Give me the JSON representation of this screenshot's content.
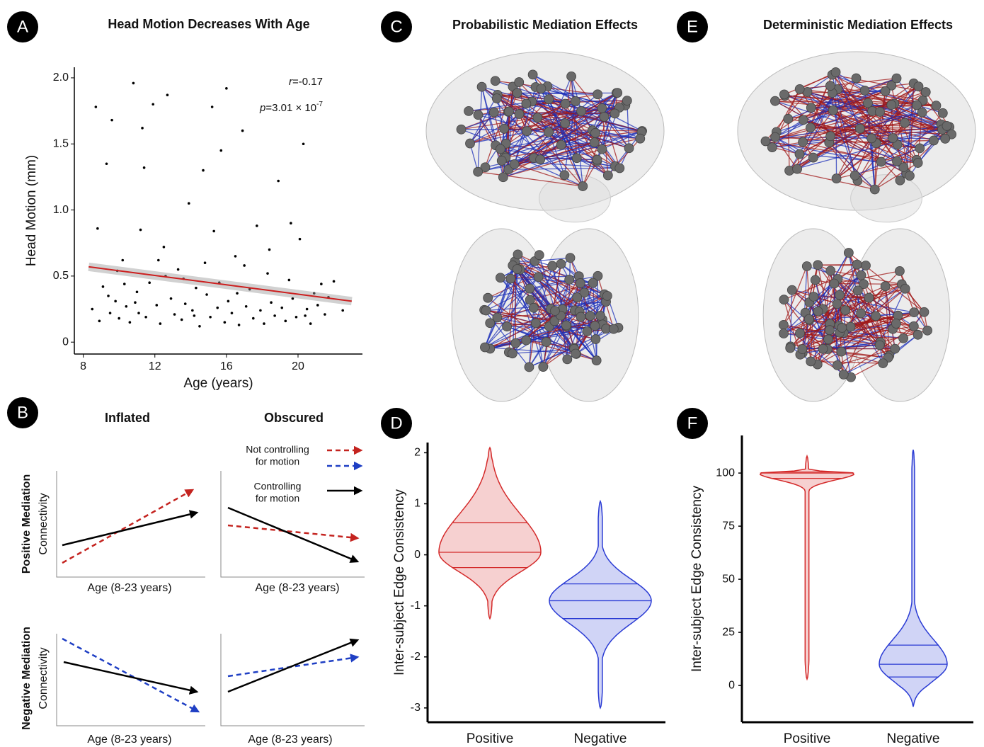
{
  "figure": {
    "labels": [
      "A",
      "B",
      "C",
      "D",
      "E",
      "F"
    ],
    "panel_b": {
      "columns": [
        "Inflated",
        "Obscured"
      ],
      "rows": [
        {
          "title": "Positive Mediation",
          "axis": "Connectivity"
        },
        {
          "title": "Negative Mediation",
          "axis": "Connectivity"
        }
      ],
      "x_label": "Age (8-23 years)",
      "legend": [
        {
          "label": [
            "Not controlling",
            "for motion"
          ]
        },
        {
          "label": [
            "Controlling",
            "for motion"
          ]
        }
      ]
    },
    "brain_titles": [
      "Probabilistic Mediation Effects",
      "Deterministic Mediation Effects"
    ]
  },
  "chart_data": [
    {
      "type": "scatter",
      "title": "Head Motion Decreases With Age",
      "x_label": "Age (years)",
      "y_label": "Head Motion (mm)",
      "x": [
        8.5,
        8.7,
        8.9,
        9.1,
        9.3,
        9.5,
        9.6,
        9.8,
        10.0,
        10.2,
        10.4,
        10.6,
        10.8,
        11.0,
        11.1,
        11.3,
        11.5,
        11.7,
        11.9,
        12.1,
        12.3,
        12.5,
        12.7,
        12.9,
        13.1,
        13.3,
        13.5,
        13.7,
        13.9,
        14.1,
        14.3,
        14.5,
        14.7,
        14.9,
        15.1,
        15.3,
        15.5,
        15.7,
        15.9,
        16.1,
        16.3,
        16.5,
        16.7,
        16.9,
        17.1,
        17.3,
        17.5,
        17.7,
        17.9,
        18.1,
        18.3,
        18.5,
        18.7,
        18.9,
        19.1,
        19.3,
        19.5,
        19.7,
        19.9,
        20.1,
        20.3,
        20.5,
        20.7,
        20.9,
        21.1,
        21.3,
        21.5,
        21.7,
        22.0,
        22.5,
        8.8,
        9.9,
        10.9,
        11.2,
        12.6,
        14.8,
        15.6,
        16.0,
        17.0,
        11.4,
        9.4,
        13.6,
        15.2,
        18.4,
        19.6,
        20.4,
        10.3,
        12.2,
        16.6,
        14.2
      ],
      "series": [
        {
          "color": "#000000",
          "values": [
            0.25,
            1.78,
            0.16,
            0.42,
            1.35,
            0.22,
            1.68,
            0.31,
            0.18,
            0.62,
            0.27,
            0.15,
            1.96,
            0.38,
            0.22,
            1.62,
            0.19,
            0.45,
            1.8,
            0.28,
            0.14,
            0.72,
            1.87,
            0.33,
            0.21,
            0.55,
            0.17,
            0.29,
            1.05,
            0.24,
            0.41,
            0.12,
            1.3,
            0.36,
            0.19,
            0.84,
            0.26,
            1.45,
            0.15,
            0.31,
            0.22,
            0.65,
            0.13,
            1.6,
            0.27,
            0.4,
            0.18,
            0.88,
            0.24,
            0.14,
            0.52,
            0.3,
            0.2,
            1.22,
            0.26,
            0.16,
            0.47,
            0.33,
            0.19,
            0.78,
            1.5,
            0.25,
            0.14,
            0.37,
            0.28,
            0.44,
            0.21,
            0.34,
            0.46,
            0.24,
            0.86,
            0.54,
            0.3,
            0.85,
            0.5,
            0.6,
            0.45,
            1.92,
            0.58,
            1.32,
            0.35,
            0.48,
            1.78,
            0.7,
            0.9,
            0.2,
            0.44,
            0.62,
            0.37,
            0.2
          ]
        }
      ],
      "trendline": {
        "x": [
          8.3,
          23
        ],
        "values": [
          0.57,
          0.31
        ],
        "color": "#cc1f1f"
      },
      "annotations": [
        {
          "parts": [
            "r",
            "=-0.17"
          ]
        },
        {
          "parts": [
            "p",
            "=3.01 × 10",
            "-7"
          ]
        }
      ],
      "xlim": [
        7.5,
        23.6
      ],
      "ylim": [
        -0.09,
        2.08
      ],
      "xticks": [
        8,
        12,
        16,
        20
      ],
      "yticks": [
        0,
        0.5,
        {
          "value": 1,
          "label": "1.0"
        },
        1.5,
        {
          "value": 2,
          "label": "2.0"
        }
      ]
    },
    {
      "type": "violin",
      "y_label": "Inter-subject Edge Consistency",
      "categories": [
        "Positive",
        "Negative"
      ],
      "colors": [
        "#d42a2a",
        "#2a3bd4"
      ],
      "min": [
        -1.25,
        -3.0
      ],
      "q1": [
        -0.25,
        -1.25
      ],
      "median": [
        0.05,
        -0.9
      ],
      "q3": [
        0.63,
        -0.57
      ],
      "max": [
        2.1,
        1.05
      ],
      "ylim": [
        -3.28,
        2.2
      ],
      "yticks": [
        -3,
        -2,
        -1,
        0,
        1,
        2
      ]
    },
    {
      "type": "violin",
      "y_label": "Inter-subject Edge Consistency",
      "categories": [
        "Positive",
        "Negative"
      ],
      "colors": [
        "#d42a2a",
        "#2a3bd4"
      ],
      "min": [
        3,
        -10
      ],
      "q1": [
        97.5,
        4
      ],
      "median": [
        100,
        10
      ],
      "q3": [
        100.5,
        19
      ],
      "max": [
        108,
        111
      ],
      "ylim": [
        -17.3,
        117.7
      ],
      "yticks": [
        0,
        25,
        50,
        75,
        100
      ]
    }
  ]
}
